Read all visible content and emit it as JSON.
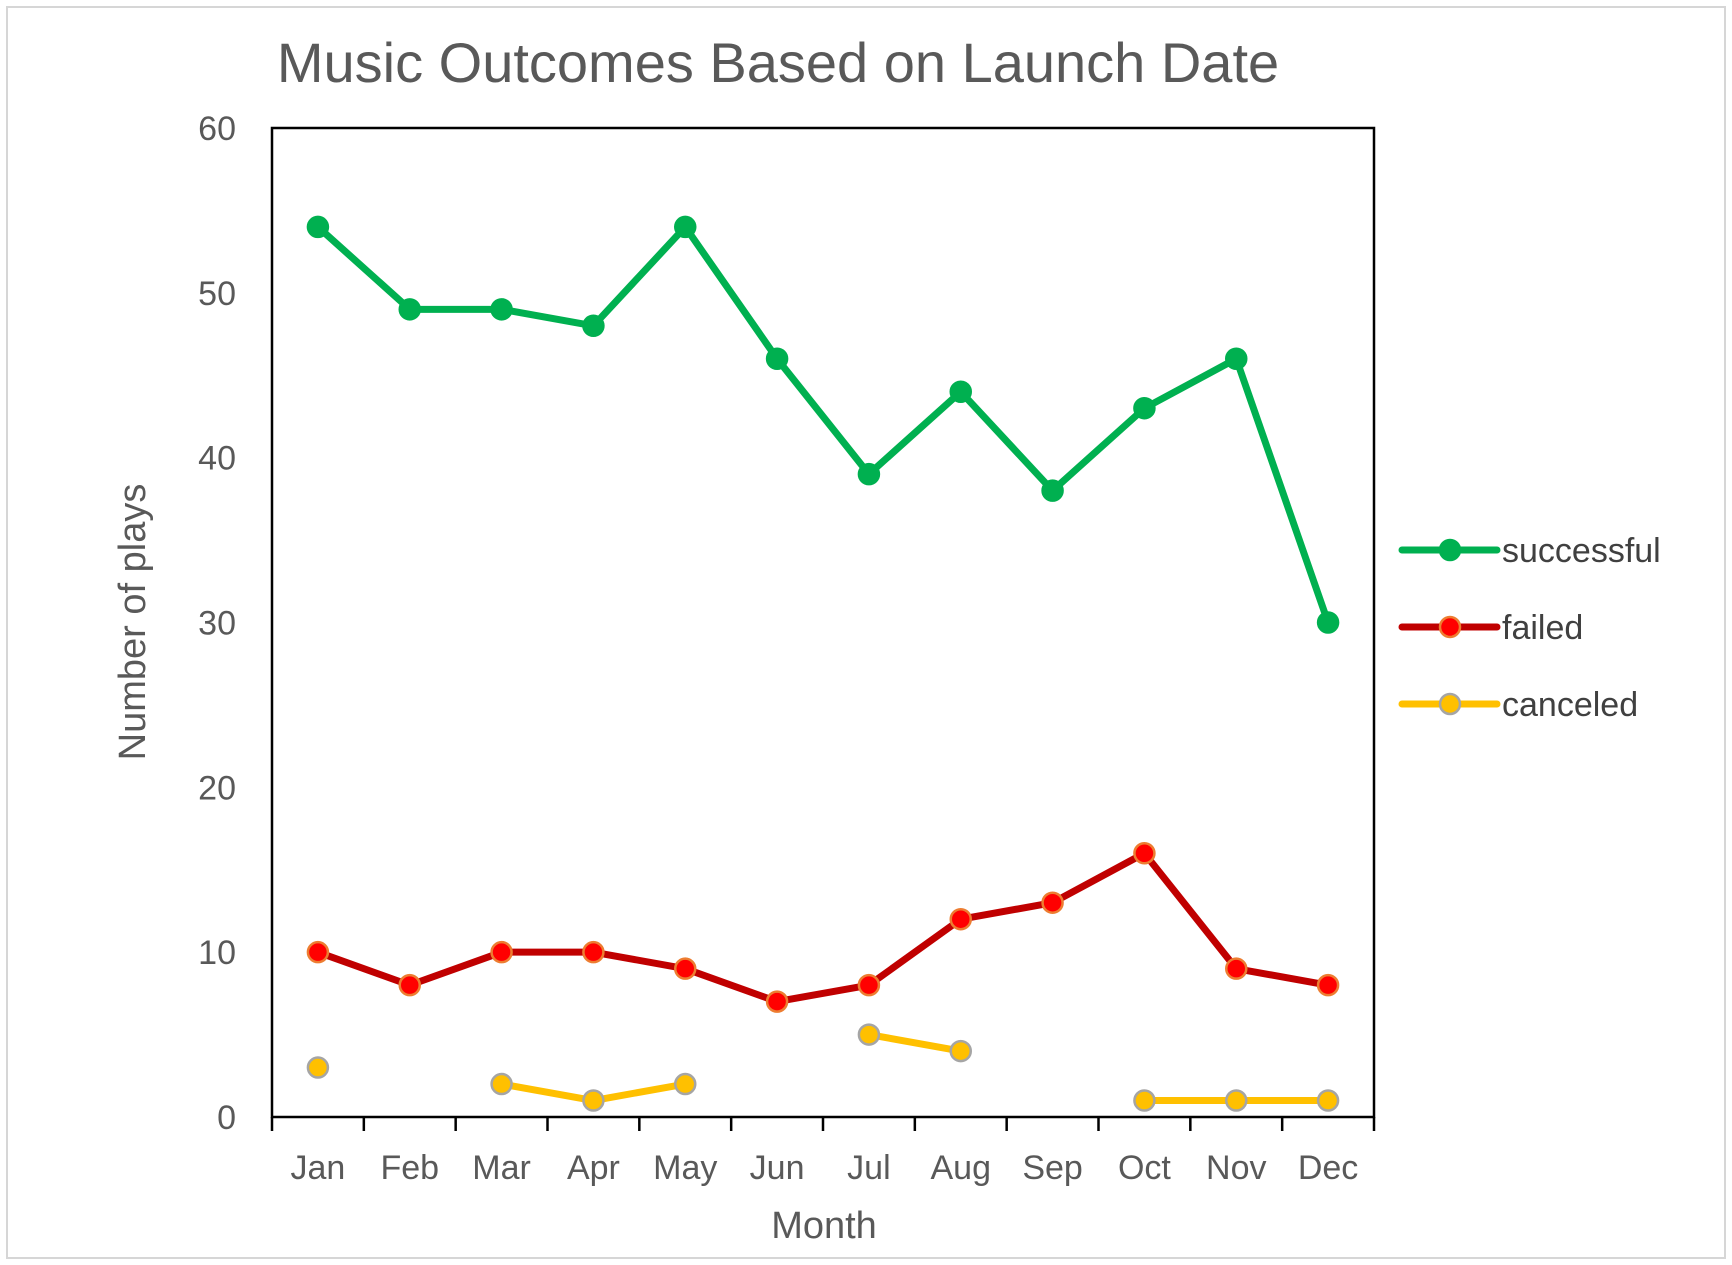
{
  "chart_data": {
    "type": "line",
    "title": "Music Outcomes Based on Launch Date",
    "xlabel": "Month",
    "ylabel": "Number of plays",
    "categories": [
      "Jan",
      "Feb",
      "Mar",
      "Apr",
      "May",
      "Jun",
      "Jul",
      "Aug",
      "Sep",
      "Oct",
      "Nov",
      "Dec"
    ],
    "ylim": [
      0,
      60
    ],
    "yticks": [
      0,
      10,
      20,
      30,
      40,
      50,
      60
    ],
    "grid": false,
    "legend_position": "right",
    "series": [
      {
        "name": "successful",
        "color": "#00B050",
        "marker_fill": "#00B050",
        "marker_stroke": "#00B050",
        "values": [
          54,
          49,
          49,
          48,
          54,
          46,
          39,
          44,
          38,
          43,
          46,
          30
        ]
      },
      {
        "name": "failed",
        "color": "#C00000",
        "marker_fill": "#FF0000",
        "marker_stroke": "#ED7D31",
        "values": [
          10,
          8,
          10,
          10,
          9,
          7,
          8,
          12,
          13,
          16,
          9,
          8
        ]
      },
      {
        "name": "canceled",
        "color": "#FFC000",
        "marker_fill": "#FFC000",
        "marker_stroke": "#A5A5A5",
        "values": [
          3,
          null,
          2,
          1,
          2,
          null,
          5,
          4,
          null,
          1,
          1,
          1
        ]
      }
    ]
  }
}
